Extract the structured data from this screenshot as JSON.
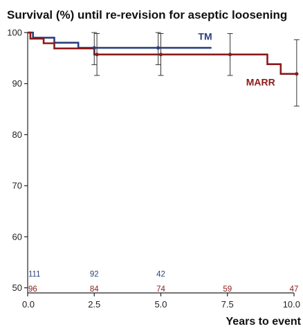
{
  "chart_data": {
    "type": "line",
    "title": "Survival (%) until re-revision for aseptic loosening",
    "xlabel": "Years to event",
    "ylabel": "",
    "xlim": [
      0,
      10
    ],
    "ylim": [
      49,
      100
    ],
    "x_ticks": [
      0,
      2.5,
      5,
      7.5,
      10
    ],
    "x_tick_labels": [
      "0.0",
      "2.5",
      "5.0",
      "7.5",
      "10.0"
    ],
    "y_ticks": [
      50,
      60,
      70,
      80,
      90,
      100
    ],
    "y_tick_labels": [
      "50",
      "60",
      "70",
      "80",
      "90",
      "100"
    ],
    "grid": false,
    "series": [
      {
        "name": "TM",
        "color": "#2e3f7f",
        "step_x": [
          0,
          0.2,
          0.2,
          1.0,
          1.0,
          1.9,
          1.9,
          6.9
        ],
        "step_y": [
          100,
          100,
          99,
          99,
          98,
          98,
          97,
          97
        ],
        "error_bars": [
          {
            "x": 2.5,
            "y": 97,
            "low": 93.7,
            "high": 100
          },
          {
            "x": 4.9,
            "y": 97,
            "low": 93.7,
            "high": 100
          }
        ]
      },
      {
        "name": "MARR",
        "color": "#8b1a1a",
        "step_x": [
          0,
          0.1,
          0.1,
          0.6,
          0.6,
          1.0,
          1.0,
          2.5,
          2.5,
          9.0,
          9.0,
          9.5,
          9.5,
          10.1
        ],
        "step_y": [
          100,
          100,
          98.8,
          98.8,
          97.9,
          97.9,
          96.9,
          96.9,
          95.7,
          95.7,
          93.8,
          93.8,
          91.9,
          91.9
        ],
        "error_bars": [
          {
            "x": 2.6,
            "y": 95.7,
            "low": 91.6,
            "high": 99.8
          },
          {
            "x": 5.0,
            "y": 95.7,
            "low": 91.6,
            "high": 99.8
          },
          {
            "x": 7.6,
            "y": 95.7,
            "low": 91.6,
            "high": 99.8
          },
          {
            "x": 10.1,
            "y": 91.9,
            "low": 85.6,
            "high": 98.6
          }
        ]
      }
    ],
    "numbers_at_risk": [
      {
        "series": "TM",
        "color": "#2e3f7f",
        "x": [
          0,
          2.5,
          5
        ],
        "labels": [
          "111",
          "92",
          "42"
        ]
      },
      {
        "series": "MARR",
        "color": "#8b1a1a",
        "x": [
          0,
          2.5,
          5,
          7.5,
          10
        ],
        "labels": [
          "96",
          "84",
          "74",
          "59",
          "47"
        ]
      }
    ]
  }
}
